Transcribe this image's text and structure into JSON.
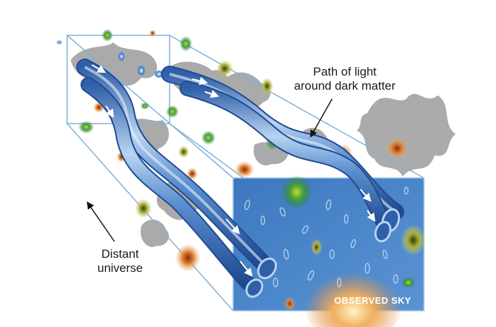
{
  "diagram": {
    "annotation_path": {
      "line1": "Path of light",
      "line2": "around dark matter"
    },
    "annotation_distant": {
      "line1": "Distant",
      "line2": "universe"
    },
    "panel_label": "OBSERVED SKY"
  },
  "colors": {
    "frame": "#7fb1d8",
    "sky_panel": "#4a86c9",
    "tube": "#5a8fd0",
    "dark_matter": "#9a9a9a",
    "galaxy_green": "#2f9a3a",
    "galaxy_orange": "#d9772c"
  }
}
